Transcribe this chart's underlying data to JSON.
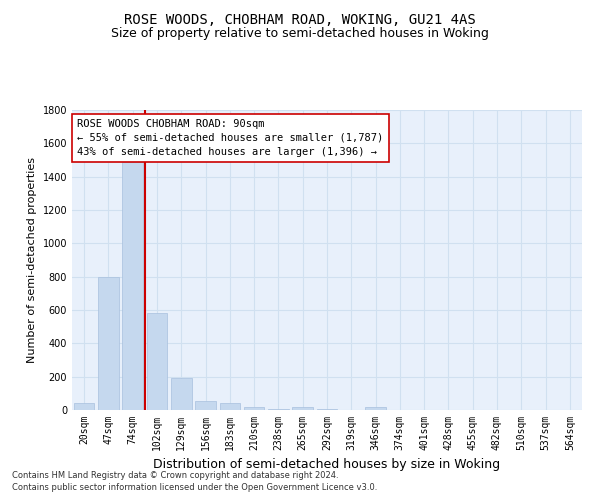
{
  "title": "ROSE WOODS, CHOBHAM ROAD, WOKING, GU21 4AS",
  "subtitle": "Size of property relative to semi-detached houses in Woking",
  "xlabel": "Distribution of semi-detached houses by size in Woking",
  "ylabel": "Number of semi-detached properties",
  "footnote1": "Contains HM Land Registry data © Crown copyright and database right 2024.",
  "footnote2": "Contains public sector information licensed under the Open Government Licence v3.0.",
  "bar_labels": [
    "20sqm",
    "47sqm",
    "74sqm",
    "102sqm",
    "129sqm",
    "156sqm",
    "183sqm",
    "210sqm",
    "238sqm",
    "265sqm",
    "292sqm",
    "319sqm",
    "346sqm",
    "374sqm",
    "401sqm",
    "428sqm",
    "455sqm",
    "482sqm",
    "510sqm",
    "537sqm",
    "564sqm"
  ],
  "bar_values": [
    40,
    800,
    1490,
    580,
    190,
    55,
    40,
    17,
    5,
    17,
    5,
    0,
    17,
    0,
    0,
    0,
    0,
    0,
    0,
    0,
    0
  ],
  "bar_color": "#c5d8ee",
  "bar_edge_color": "#a8c0de",
  "grid_color": "#d0e0f0",
  "background_color": "#e8f0fb",
  "subject_line_color": "#cc0000",
  "annotation_text": "ROSE WOODS CHOBHAM ROAD: 90sqm\n← 55% of semi-detached houses are smaller (1,787)\n43% of semi-detached houses are larger (1,396) →",
  "annotation_box_color": "#ffffff",
  "annotation_box_edge": "#cc0000",
  "ylim": [
    0,
    1800
  ],
  "yticks": [
    0,
    200,
    400,
    600,
    800,
    1000,
    1200,
    1400,
    1600,
    1800
  ],
  "title_fontsize": 10,
  "subtitle_fontsize": 9,
  "axis_label_fontsize": 8,
  "tick_fontsize": 7,
  "annotation_fontsize": 7.5,
  "footnote_fontsize": 6
}
